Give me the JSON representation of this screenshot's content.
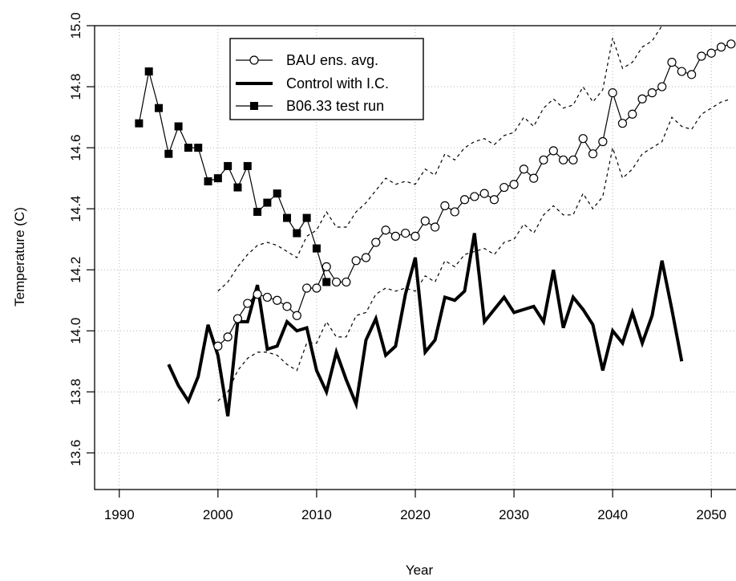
{
  "chart_data": {
    "type": "line",
    "title": "",
    "xlabel": "Year",
    "ylabel": "Temperature (C)",
    "xlim": [
      1987.5,
      2052.5
    ],
    "ylim": [
      13.48,
      15.0
    ],
    "xticks": [
      1990,
      2000,
      2010,
      2020,
      2030,
      2040,
      2050
    ],
    "yticks": [
      13.6,
      13.8,
      14.0,
      14.2,
      14.4,
      14.6,
      14.8,
      15.0
    ],
    "xtick_labels": [
      "1990",
      "2000",
      "2010",
      "2020",
      "2030",
      "2040",
      "2050"
    ],
    "ytick_labels": [
      "13.6",
      "13.8",
      "14.0",
      "14.2",
      "14.4",
      "14.6",
      "14.8",
      "15.0"
    ],
    "grid": true,
    "legend_position": "top-center",
    "series": [
      {
        "name": "BAU ens. avg.",
        "style": "open-circle-line",
        "x": [
          2000,
          2001,
          2002,
          2003,
          2004,
          2005,
          2006,
          2007,
          2008,
          2009,
          2010,
          2011,
          2012,
          2013,
          2014,
          2015,
          2016,
          2017,
          2018,
          2019,
          2020,
          2021,
          2022,
          2023,
          2024,
          2025,
          2026,
          2027,
          2028,
          2029,
          2030,
          2031,
          2032,
          2033,
          2034,
          2035,
          2036,
          2037,
          2038,
          2039,
          2040,
          2041,
          2042,
          2043,
          2044,
          2045,
          2046,
          2047,
          2048,
          2049,
          2050,
          2051,
          2052
        ],
        "y": [
          13.95,
          13.98,
          14.04,
          14.09,
          14.12,
          14.11,
          14.1,
          14.08,
          14.05,
          14.14,
          14.14,
          14.21,
          14.16,
          14.16,
          14.23,
          14.24,
          14.29,
          14.33,
          14.31,
          14.32,
          14.31,
          14.36,
          14.34,
          14.41,
          14.39,
          14.43,
          14.44,
          14.45,
          14.43,
          14.47,
          14.48,
          14.53,
          14.5,
          14.56,
          14.59,
          14.56,
          14.56,
          14.63,
          14.58,
          14.62,
          14.78,
          14.68,
          14.71,
          14.76,
          14.78,
          14.8,
          14.88,
          14.85,
          14.84,
          14.9,
          14.91,
          14.93,
          14.94
        ]
      },
      {
        "name": "Control with I.C.",
        "style": "thick-line",
        "x": [
          1995,
          1996,
          1997,
          1998,
          1999,
          2000,
          2001,
          2002,
          2003,
          2004,
          2005,
          2006,
          2007,
          2008,
          2009,
          2010,
          2011,
          2012,
          2013,
          2014,
          2015,
          2016,
          2017,
          2018,
          2019,
          2020,
          2021,
          2022,
          2023,
          2024,
          2025,
          2026,
          2027,
          2028,
          2029,
          2030,
          2031,
          2032,
          2033,
          2034,
          2035,
          2036,
          2037,
          2038,
          2039,
          2040,
          2041,
          2042,
          2043,
          2044,
          2045,
          2046,
          2047
        ],
        "y": [
          13.89,
          13.82,
          13.77,
          13.85,
          14.02,
          13.92,
          13.72,
          14.03,
          14.03,
          14.15,
          13.94,
          13.95,
          14.03,
          14.0,
          14.01,
          13.87,
          13.8,
          13.93,
          13.84,
          13.76,
          13.97,
          14.04,
          13.92,
          13.95,
          14.12,
          14.24,
          13.93,
          13.97,
          14.11,
          14.1,
          14.13,
          14.32,
          14.03,
          14.07,
          14.11,
          14.06,
          14.07,
          14.08,
          14.03,
          14.2,
          14.01,
          14.11,
          14.07,
          14.02,
          13.87,
          14.0,
          13.96,
          14.06,
          13.96,
          14.05,
          14.23,
          14.07,
          13.9
        ]
      },
      {
        "name": "B06.33 test run",
        "style": "filled-square-line",
        "x": [
          1992,
          1993,
          1994,
          1995,
          1996,
          1997,
          1998,
          1999,
          2000,
          2001,
          2002,
          2003,
          2004,
          2005,
          2006,
          2007,
          2008,
          2009,
          2010,
          2011
        ],
        "y": [
          14.68,
          14.85,
          14.73,
          14.58,
          14.67,
          14.6,
          14.6,
          14.49,
          14.5,
          14.54,
          14.47,
          14.54,
          14.39,
          14.42,
          14.45,
          14.37,
          14.32,
          14.37,
          14.27,
          14.16
        ]
      },
      {
        "name": "",
        "style": "dashed-line",
        "x": [
          2000,
          2001,
          2002,
          2003,
          2004,
          2005,
          2006,
          2007,
          2008,
          2009,
          2010,
          2011,
          2012,
          2013,
          2014,
          2015,
          2016,
          2017,
          2018,
          2019,
          2020,
          2021,
          2022,
          2023,
          2024,
          2025,
          2026,
          2027,
          2028,
          2029,
          2030,
          2031,
          2032,
          2033,
          2034,
          2035,
          2036,
          2037,
          2038,
          2039,
          2040,
          2041,
          2042,
          2043,
          2044,
          2045
        ],
        "y": [
          14.13,
          14.16,
          14.21,
          14.25,
          14.28,
          14.29,
          14.28,
          14.26,
          14.24,
          14.31,
          14.33,
          14.39,
          14.34,
          14.34,
          14.39,
          14.42,
          14.46,
          14.5,
          14.48,
          14.49,
          14.48,
          14.53,
          14.51,
          14.58,
          14.56,
          14.6,
          14.62,
          14.63,
          14.61,
          14.64,
          14.65,
          14.7,
          14.67,
          14.73,
          14.76,
          14.73,
          14.74,
          14.8,
          14.75,
          14.79,
          14.96,
          14.86,
          14.88,
          14.93,
          14.95,
          15.0
        ]
      },
      {
        "name": "",
        "style": "dashed-line",
        "x": [
          2000,
          2001,
          2002,
          2003,
          2004,
          2005,
          2006,
          2007,
          2008,
          2009,
          2010,
          2011,
          2012,
          2013,
          2014,
          2015,
          2016,
          2017,
          2018,
          2019,
          2020,
          2021,
          2022,
          2023,
          2024,
          2025,
          2026,
          2027,
          2028,
          2029,
          2030,
          2031,
          2032,
          2033,
          2034,
          2035,
          2036,
          2037,
          2038,
          2039,
          2040,
          2041,
          2042,
          2043,
          2044,
          2045,
          2046,
          2047,
          2048,
          2049,
          2050,
          2051,
          2052
        ],
        "y": [
          13.77,
          13.8,
          13.87,
          13.91,
          13.93,
          13.93,
          13.92,
          13.89,
          13.87,
          13.96,
          13.96,
          14.03,
          13.98,
          13.98,
          14.05,
          14.06,
          14.12,
          14.14,
          14.13,
          14.14,
          14.13,
          14.18,
          14.16,
          14.23,
          14.21,
          14.25,
          14.26,
          14.27,
          14.25,
          14.29,
          14.3,
          14.35,
          14.32,
          14.38,
          14.41,
          14.38,
          14.38,
          14.45,
          14.4,
          14.44,
          14.6,
          14.5,
          14.53,
          14.58,
          14.6,
          14.62,
          14.7,
          14.67,
          14.66,
          14.71,
          14.73,
          14.75,
          14.76
        ]
      }
    ]
  }
}
